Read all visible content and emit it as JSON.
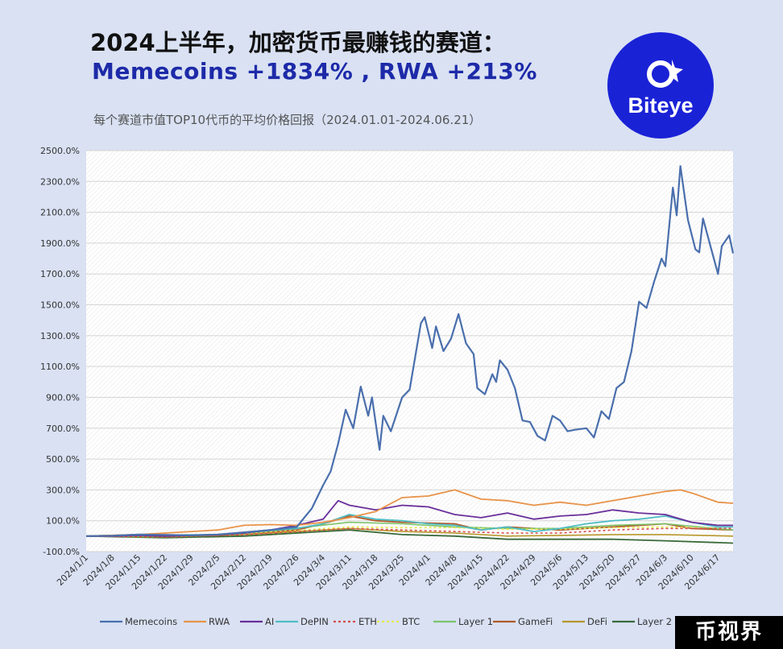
{
  "header": {
    "title_line1": "2024上半年，加密货币最赚钱的赛道：",
    "title_line2": "Memecoins  +1834%  , RWA  +213%",
    "subtitle": "每个赛道市值TOP10代币的平均价格回报（2024.01.01-2024.06.21）"
  },
  "logo": {
    "text": "Biteye",
    "icon": "biteye-logo-icon",
    "bg_color": "#1a22d6"
  },
  "watermark": {
    "text": "币视界"
  },
  "chart_data": {
    "type": "line",
    "ylim": [
      -100,
      2500
    ],
    "yticks": [
      -100,
      100,
      300,
      500,
      700,
      900,
      1100,
      1300,
      1500,
      1700,
      1900,
      2100,
      2300,
      2500
    ],
    "ytick_labels": [
      "-100.0%",
      "100.0%",
      "300.0%",
      "500.0%",
      "700.0%",
      "900.0%",
      "1100.0%",
      "1300.0%",
      "1500.0%",
      "1700.0%",
      "1900.0%",
      "2100.0%",
      "2300.0%",
      "2500.0%"
    ],
    "xticks": [
      "2024/1/1",
      "2024/1/8",
      "2024/1/15",
      "2024/1/22",
      "2024/1/29",
      "2024/2/5",
      "2024/2/12",
      "2024/2/19",
      "2024/2/26",
      "2024/3/4",
      "2024/3/11",
      "2024/3/18",
      "2024/3/25",
      "2024/4/1",
      "2024/4/8",
      "2024/4/15",
      "2024/4/22",
      "2024/4/29",
      "2024/5/6",
      "2024/5/13",
      "2024/5/20",
      "2024/5/27",
      "2024/6/3",
      "2024/6/10",
      "2024/6/17"
    ],
    "x_range": [
      "2024/1/1",
      "2024/6/21"
    ],
    "legend_position": "bottom",
    "grid": true,
    "series": [
      {
        "name": "Memecoins",
        "color": "#4a6fad",
        "width": 2.2,
        "dash": "",
        "points": [
          [
            "2024/1/1",
            0
          ],
          [
            "2024/1/8",
            3
          ],
          [
            "2024/1/15",
            10
          ],
          [
            "2024/1/22",
            8
          ],
          [
            "2024/1/29",
            5
          ],
          [
            "2024/2/5",
            10
          ],
          [
            "2024/2/12",
            25
          ],
          [
            "2024/2/19",
            40
          ],
          [
            "2024/2/26",
            60
          ],
          [
            "2024/3/1",
            180
          ],
          [
            "2024/3/4",
            330
          ],
          [
            "2024/3/6",
            420
          ],
          [
            "2024/3/8",
            600
          ],
          [
            "2024/3/10",
            820
          ],
          [
            "2024/3/12",
            700
          ],
          [
            "2024/3/14",
            970
          ],
          [
            "2024/3/16",
            780
          ],
          [
            "2024/3/17",
            900
          ],
          [
            "2024/3/19",
            560
          ],
          [
            "2024/3/20",
            780
          ],
          [
            "2024/3/22",
            680
          ],
          [
            "2024/3/25",
            900
          ],
          [
            "2024/3/27",
            950
          ],
          [
            "2024/3/30",
            1380
          ],
          [
            "2024/3/31",
            1420
          ],
          [
            "2024/4/2",
            1220
          ],
          [
            "2024/4/3",
            1360
          ],
          [
            "2024/4/5",
            1200
          ],
          [
            "2024/4/7",
            1280
          ],
          [
            "2024/4/9",
            1440
          ],
          [
            "2024/4/11",
            1250
          ],
          [
            "2024/4/13",
            1180
          ],
          [
            "2024/4/14",
            960
          ],
          [
            "2024/4/16",
            920
          ],
          [
            "2024/4/18",
            1050
          ],
          [
            "2024/4/19",
            1000
          ],
          [
            "2024/4/20",
            1140
          ],
          [
            "2024/4/22",
            1080
          ],
          [
            "2024/4/24",
            960
          ],
          [
            "2024/4/26",
            750
          ],
          [
            "2024/4/28",
            740
          ],
          [
            "2024/4/30",
            650
          ],
          [
            "2024/5/2",
            620
          ],
          [
            "2024/5/4",
            780
          ],
          [
            "2024/5/6",
            750
          ],
          [
            "2024/5/8",
            680
          ],
          [
            "2024/5/10",
            690
          ],
          [
            "2024/5/13",
            700
          ],
          [
            "2024/5/15",
            640
          ],
          [
            "2024/5/17",
            810
          ],
          [
            "2024/5/19",
            760
          ],
          [
            "2024/5/21",
            960
          ],
          [
            "2024/5/23",
            1000
          ],
          [
            "2024/5/25",
            1200
          ],
          [
            "2024/5/27",
            1520
          ],
          [
            "2024/5/29",
            1480
          ],
          [
            "2024/5/31",
            1650
          ],
          [
            "2024/6/2",
            1800
          ],
          [
            "2024/6/3",
            1750
          ],
          [
            "2024/6/5",
            2260
          ],
          [
            "2024/6/6",
            2080
          ],
          [
            "2024/6/7",
            2400
          ],
          [
            "2024/6/9",
            2050
          ],
          [
            "2024/6/11",
            1860
          ],
          [
            "2024/6/12",
            1840
          ],
          [
            "2024/6/13",
            2060
          ],
          [
            "2024/6/15",
            1880
          ],
          [
            "2024/6/17",
            1700
          ],
          [
            "2024/6/18",
            1880
          ],
          [
            "2024/6/20",
            1950
          ],
          [
            "2024/6/21",
            1834
          ]
        ]
      },
      {
        "name": "RWA",
        "color": "#e8934a",
        "width": 1.8,
        "dash": "",
        "points": [
          [
            "2024/1/1",
            0
          ],
          [
            "2024/1/8",
            5
          ],
          [
            "2024/1/15",
            10
          ],
          [
            "2024/1/22",
            20
          ],
          [
            "2024/1/29",
            30
          ],
          [
            "2024/2/5",
            40
          ],
          [
            "2024/2/12",
            70
          ],
          [
            "2024/2/19",
            75
          ],
          [
            "2024/2/26",
            70
          ],
          [
            "2024/3/4",
            90
          ],
          [
            "2024/3/11",
            120
          ],
          [
            "2024/3/18",
            160
          ],
          [
            "2024/3/25",
            250
          ],
          [
            "2024/4/1",
            260
          ],
          [
            "2024/4/8",
            300
          ],
          [
            "2024/4/15",
            240
          ],
          [
            "2024/4/22",
            230
          ],
          [
            "2024/4/29",
            200
          ],
          [
            "2024/5/6",
            220
          ],
          [
            "2024/5/13",
            200
          ],
          [
            "2024/5/20",
            230
          ],
          [
            "2024/5/27",
            260
          ],
          [
            "2024/6/3",
            290
          ],
          [
            "2024/6/7",
            300
          ],
          [
            "2024/6/10",
            280
          ],
          [
            "2024/6/17",
            220
          ],
          [
            "2024/6/21",
            213
          ]
        ]
      },
      {
        "name": "AI",
        "color": "#6a2f9a",
        "width": 1.8,
        "dash": "",
        "points": [
          [
            "2024/1/1",
            0
          ],
          [
            "2024/1/8",
            0
          ],
          [
            "2024/1/15",
            5
          ],
          [
            "2024/1/22",
            0
          ],
          [
            "2024/1/29",
            5
          ],
          [
            "2024/2/5",
            10
          ],
          [
            "2024/2/12",
            20
          ],
          [
            "2024/2/19",
            40
          ],
          [
            "2024/2/26",
            70
          ],
          [
            "2024/3/4",
            110
          ],
          [
            "2024/3/8",
            230
          ],
          [
            "2024/3/11",
            200
          ],
          [
            "2024/3/18",
            170
          ],
          [
            "2024/3/25",
            200
          ],
          [
            "2024/4/1",
            190
          ],
          [
            "2024/4/8",
            140
          ],
          [
            "2024/4/15",
            120
          ],
          [
            "2024/4/22",
            150
          ],
          [
            "2024/4/29",
            110
          ],
          [
            "2024/5/6",
            130
          ],
          [
            "2024/5/13",
            140
          ],
          [
            "2024/5/20",
            170
          ],
          [
            "2024/5/27",
            150
          ],
          [
            "2024/6/3",
            140
          ],
          [
            "2024/6/10",
            90
          ],
          [
            "2024/6/17",
            70
          ],
          [
            "2024/6/21",
            70
          ]
        ]
      },
      {
        "name": "DePIN",
        "color": "#4fbcc4",
        "width": 1.8,
        "dash": "",
        "points": [
          [
            "2024/1/1",
            0
          ],
          [
            "2024/1/15",
            5
          ],
          [
            "2024/2/5",
            10
          ],
          [
            "2024/2/26",
            50
          ],
          [
            "2024/3/4",
            80
          ],
          [
            "2024/3/11",
            140
          ],
          [
            "2024/3/18",
            110
          ],
          [
            "2024/3/25",
            100
          ],
          [
            "2024/4/1",
            80
          ],
          [
            "2024/4/8",
            70
          ],
          [
            "2024/4/15",
            40
          ],
          [
            "2024/4/22",
            60
          ],
          [
            "2024/4/29",
            30
          ],
          [
            "2024/5/6",
            50
          ],
          [
            "2024/5/13",
            80
          ],
          [
            "2024/5/20",
            100
          ],
          [
            "2024/5/27",
            110
          ],
          [
            "2024/6/3",
            130
          ],
          [
            "2024/6/10",
            90
          ],
          [
            "2024/6/17",
            60
          ],
          [
            "2024/6/21",
            60
          ]
        ]
      },
      {
        "name": "ETH",
        "color": "#d64a4a",
        "width": 1.6,
        "dash": "3,3",
        "points": [
          [
            "2024/1/1",
            0
          ],
          [
            "2024/1/22",
            -5
          ],
          [
            "2024/2/12",
            10
          ],
          [
            "2024/3/11",
            50
          ],
          [
            "2024/3/25",
            40
          ],
          [
            "2024/4/8",
            30
          ],
          [
            "2024/4/22",
            20
          ],
          [
            "2024/5/6",
            20
          ],
          [
            "2024/5/20",
            40
          ],
          [
            "2024/6/3",
            50
          ],
          [
            "2024/6/21",
            50
          ]
        ]
      },
      {
        "name": "BTC",
        "color": "#e8e84a",
        "width": 1.6,
        "dash": "3,3",
        "points": [
          [
            "2024/1/1",
            0
          ],
          [
            "2024/1/22",
            -5
          ],
          [
            "2024/2/12",
            15
          ],
          [
            "2024/3/11",
            60
          ],
          [
            "2024/3/25",
            55
          ],
          [
            "2024/4/8",
            55
          ],
          [
            "2024/4/22",
            45
          ],
          [
            "2024/5/6",
            45
          ],
          [
            "2024/5/20",
            55
          ],
          [
            "2024/6/3",
            60
          ],
          [
            "2024/6/21",
            50
          ]
        ]
      },
      {
        "name": "Layer 1",
        "color": "#7cc46a",
        "width": 1.6,
        "dash": "",
        "points": [
          [
            "2024/1/1",
            0
          ],
          [
            "2024/1/22",
            0
          ],
          [
            "2024/2/12",
            15
          ],
          [
            "2024/3/11",
            90
          ],
          [
            "2024/3/25",
            80
          ],
          [
            "2024/4/8",
            60
          ],
          [
            "2024/4/22",
            50
          ],
          [
            "2024/5/6",
            50
          ],
          [
            "2024/5/20",
            70
          ],
          [
            "2024/6/3",
            80
          ],
          [
            "2024/6/21",
            40
          ]
        ]
      },
      {
        "name": "GameFi",
        "color": "#b05a2a",
        "width": 1.8,
        "dash": "",
        "points": [
          [
            "2024/1/1",
            0
          ],
          [
            "2024/1/15",
            10
          ],
          [
            "2024/2/5",
            5
          ],
          [
            "2024/2/26",
            40
          ],
          [
            "2024/3/4",
            80
          ],
          [
            "2024/3/11",
            130
          ],
          [
            "2024/3/18",
            100
          ],
          [
            "2024/3/25",
            90
          ],
          [
            "2024/4/8",
            80
          ],
          [
            "2024/4/15",
            40
          ],
          [
            "2024/4/22",
            60
          ],
          [
            "2024/5/6",
            40
          ],
          [
            "2024/5/20",
            60
          ],
          [
            "2024/6/3",
            80
          ],
          [
            "2024/6/10",
            50
          ],
          [
            "2024/6/21",
            40
          ]
        ]
      },
      {
        "name": "DeFi",
        "color": "#b8962a",
        "width": 1.6,
        "dash": "",
        "points": [
          [
            "2024/1/1",
            0
          ],
          [
            "2024/1/22",
            -5
          ],
          [
            "2024/2/12",
            10
          ],
          [
            "2024/3/11",
            50
          ],
          [
            "2024/3/25",
            30
          ],
          [
            "2024/4/8",
            20
          ],
          [
            "2024/4/22",
            0
          ],
          [
            "2024/5/6",
            5
          ],
          [
            "2024/5/20",
            10
          ],
          [
            "2024/6/3",
            10
          ],
          [
            "2024/6/21",
            0
          ]
        ]
      },
      {
        "name": "Layer 2",
        "color": "#3a6a3a",
        "width": 1.8,
        "dash": "",
        "points": [
          [
            "2024/1/1",
            0
          ],
          [
            "2024/1/22",
            -10
          ],
          [
            "2024/2/12",
            0
          ],
          [
            "2024/3/11",
            40
          ],
          [
            "2024/3/25",
            10
          ],
          [
            "2024/4/8",
            0
          ],
          [
            "2024/4/22",
            -20
          ],
          [
            "2024/5/6",
            -20
          ],
          [
            "2024/5/20",
            -20
          ],
          [
            "2024/6/3",
            -30
          ],
          [
            "2024/6/21",
            -45
          ]
        ]
      }
    ]
  }
}
